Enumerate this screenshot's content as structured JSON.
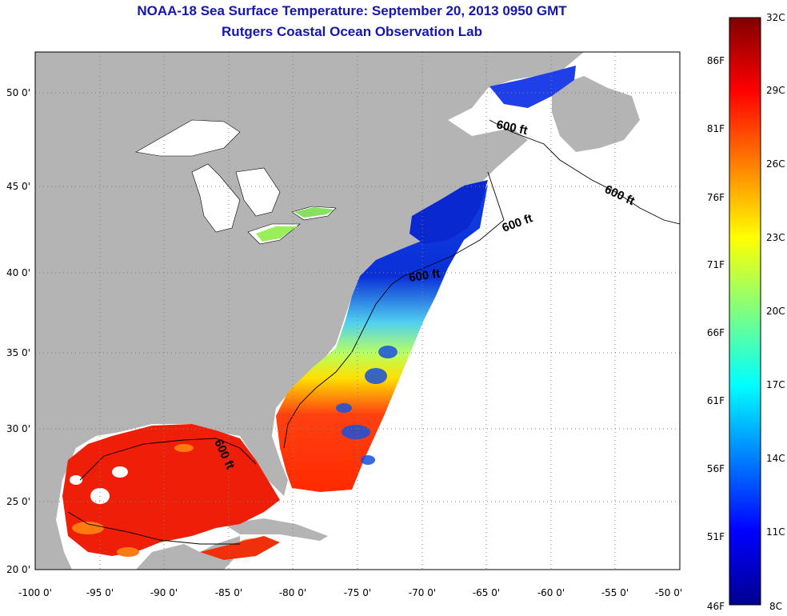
{
  "title": "NOAA-18 Sea Surface Temperature:  September 20, 2013 0950 GMT",
  "subtitle": "Rutgers Coastal Ocean Observation Lab",
  "map": {
    "lon_ticks": [
      "-100 0'",
      "-95 0'",
      "-90 0'",
      "-85 0'",
      "-80 0'",
      "-75 0'",
      "-70 0'",
      "-65 0'",
      "-60 0'",
      "-55 0'",
      "-50 0'"
    ],
    "lat_ticks": [
      "20 0'",
      "25 0'",
      "30 0'",
      "35 0'",
      "40 0'",
      "45 0'",
      "50 0'"
    ],
    "contour_labels": [
      "600 ft",
      "600 ft",
      "600 ft",
      "600 ft",
      "600 ft"
    ],
    "colors": {
      "land": "#b4b4b4",
      "ocean_nodata": "#ffffff",
      "grid": "#808080"
    }
  },
  "colorbar": {
    "celsius": [
      "32C",
      "29C",
      "26C",
      "23C",
      "20C",
      "17C",
      "14C",
      "11C",
      "8C"
    ],
    "fahrenheit": [
      "86F",
      "81F",
      "76F",
      "71F",
      "66F",
      "61F",
      "56F",
      "51F",
      "46F"
    ]
  }
}
